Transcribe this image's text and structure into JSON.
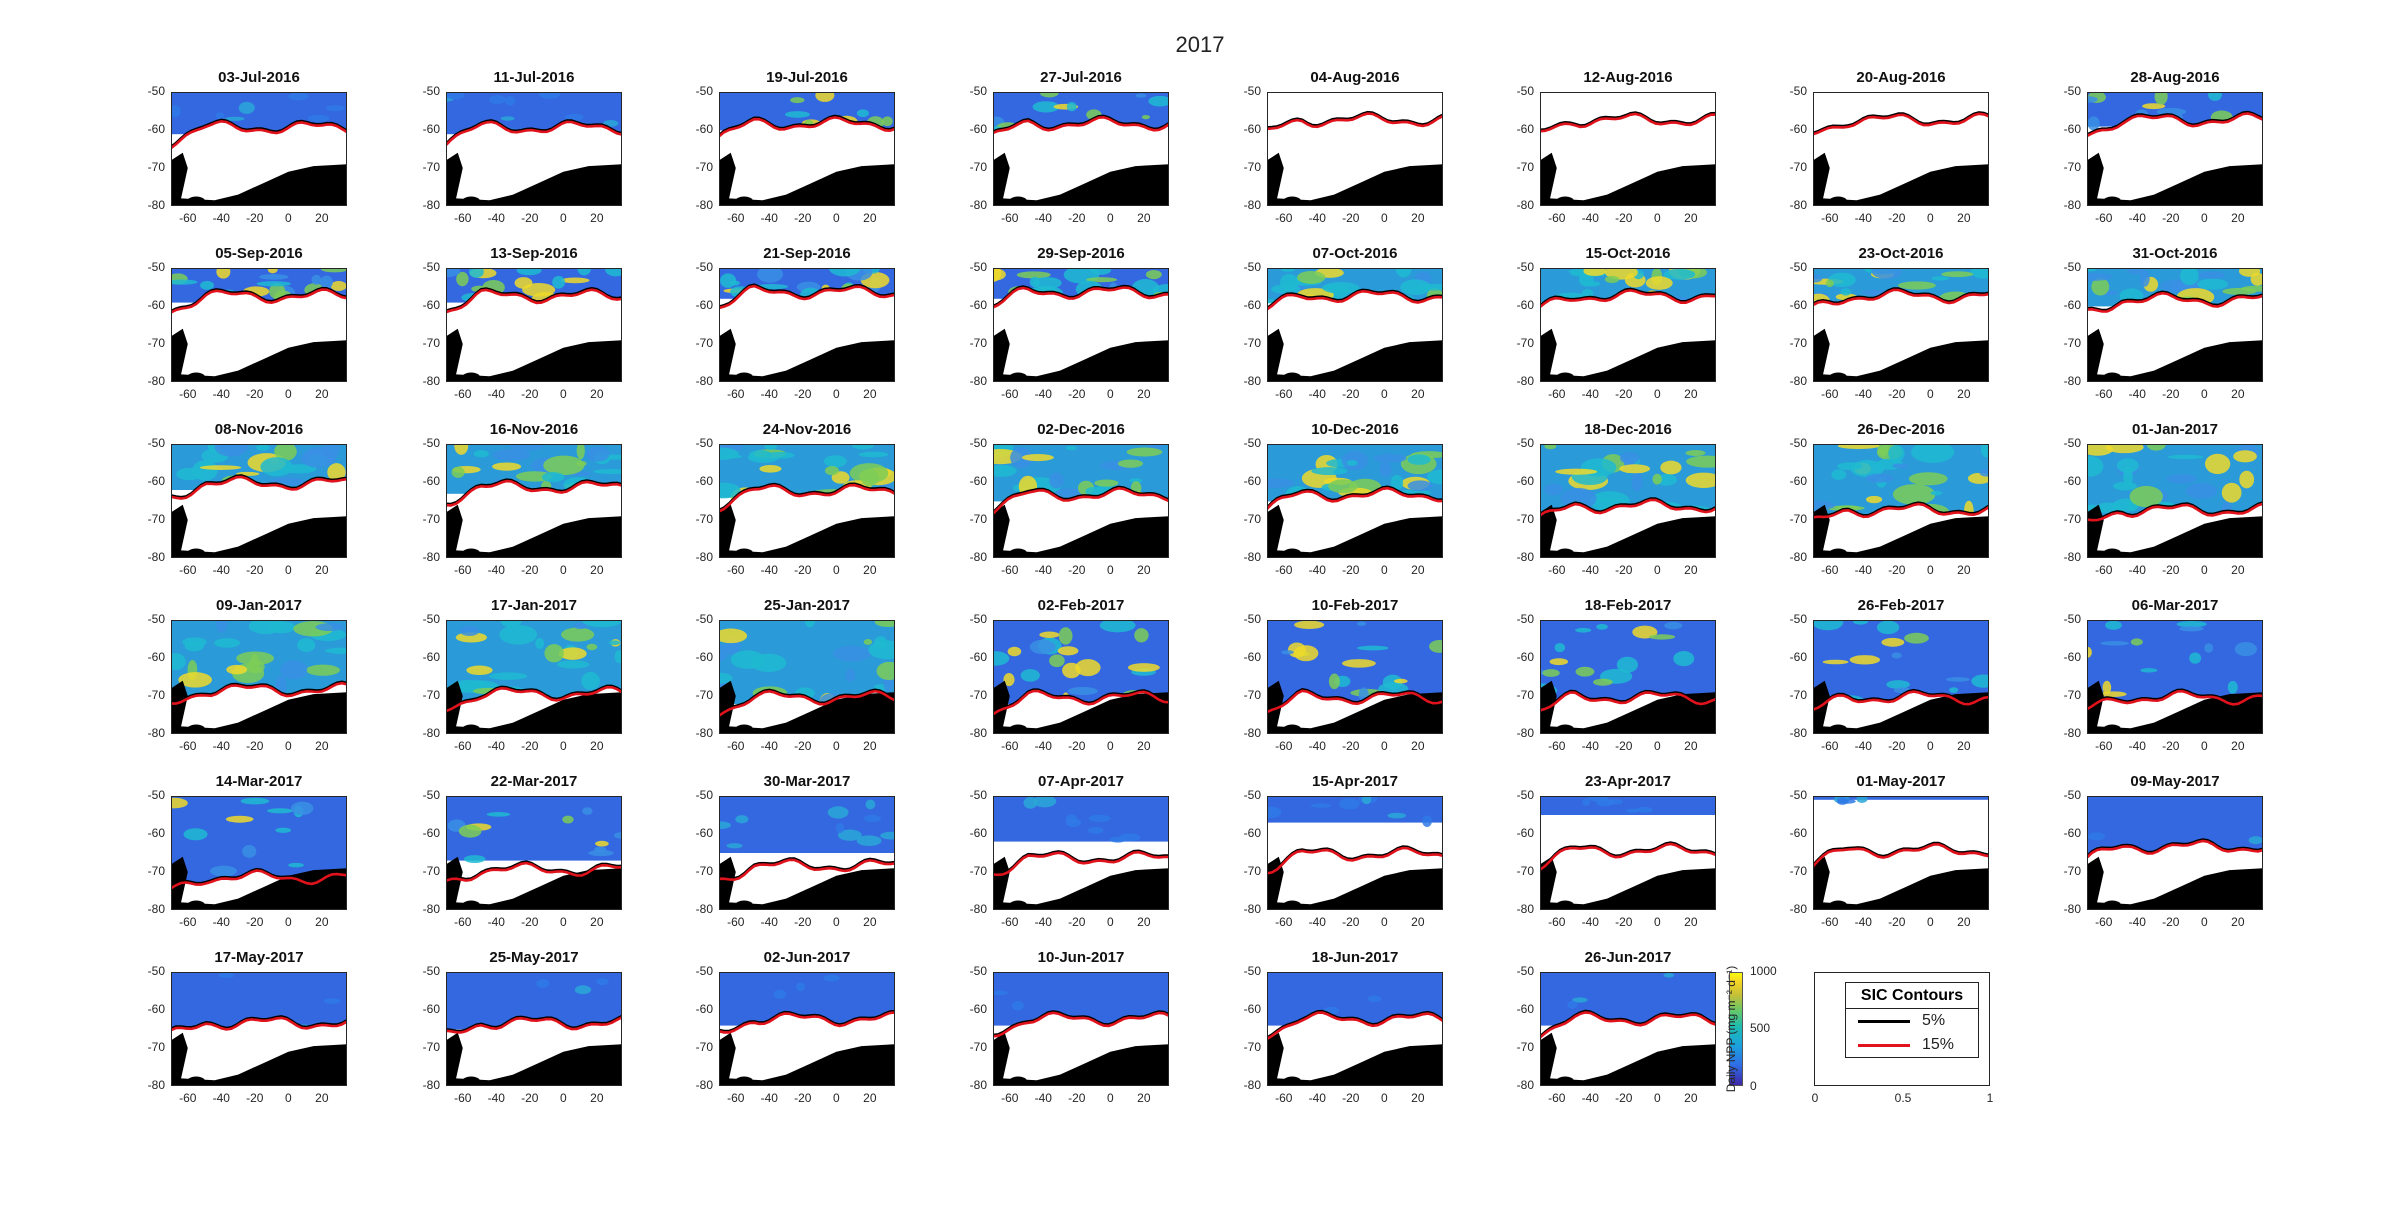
{
  "suptitle": "2017",
  "chart_data": {
    "type": "heatmap",
    "title": "2017",
    "panel_titles": [
      "03-Jul-2016",
      "11-Jul-2016",
      "19-Jul-2016",
      "27-Jul-2016",
      "04-Aug-2016",
      "12-Aug-2016",
      "20-Aug-2016",
      "28-Aug-2016",
      "05-Sep-2016",
      "13-Sep-2016",
      "21-Sep-2016",
      "29-Sep-2016",
      "07-Oct-2016",
      "15-Oct-2016",
      "23-Oct-2016",
      "31-Oct-2016",
      "08-Nov-2016",
      "16-Nov-2016",
      "24-Nov-2016",
      "02-Dec-2016",
      "10-Dec-2016",
      "18-Dec-2016",
      "26-Dec-2016",
      "01-Jan-2017",
      "09-Jan-2017",
      "17-Jan-2017",
      "25-Jan-2017",
      "02-Feb-2017",
      "10-Feb-2017",
      "18-Feb-2017",
      "26-Feb-2017",
      "06-Mar-2017",
      "14-Mar-2017",
      "22-Mar-2017",
      "30-Mar-2017",
      "07-Apr-2017",
      "15-Apr-2017",
      "23-Apr-2017",
      "01-May-2017",
      "09-May-2017",
      "17-May-2017",
      "25-May-2017",
      "02-Jun-2017",
      "10-Jun-2017",
      "18-Jun-2017",
      "26-Jun-2017"
    ],
    "ice_edge_lat": [
      -59,
      -59,
      -58,
      -58,
      -57,
      -57,
      -57,
      -57,
      -57,
      -57,
      -56,
      -56,
      -57,
      -57,
      -57,
      -58,
      -60,
      -61,
      -62,
      -63,
      -63,
      -66,
      -67,
      -67,
      -68,
      -69,
      -70,
      -70,
      -70,
      -70,
      -70,
      -70,
      -71,
      -69,
      -68,
      -66,
      -65,
      -64,
      -64,
      -63,
      -63,
      -63,
      -62,
      -62,
      -62,
      -62
    ],
    "npp_intensity": [
      0.2,
      0.25,
      0.3,
      0.35,
      0.35,
      0.4,
      0.45,
      0.5,
      0.55,
      0.5,
      0.55,
      0.6,
      0.65,
      0.65,
      0.7,
      0.7,
      0.8,
      0.8,
      0.8,
      0.85,
      0.85,
      0.9,
      0.9,
      0.85,
      0.8,
      0.8,
      0.7,
      0.6,
      0.55,
      0.5,
      0.45,
      0.4,
      0.35,
      0.3,
      0.25,
      0.2,
      0.15,
      0.1,
      0.05,
      0,
      0,
      0,
      0,
      0,
      0,
      0
    ],
    "npp_data_north_of": [
      -50,
      -50,
      -50,
      -50,
      -55,
      -55,
      -55,
      -50,
      -50,
      -50,
      -50,
      -50,
      -50,
      -50,
      -50,
      -50,
      -50,
      -50,
      -50,
      -50,
      -50,
      -50,
      -50,
      -50,
      -50,
      -50,
      -50,
      -50,
      -50,
      -50,
      -50,
      -50,
      -50,
      -67,
      -65,
      -62,
      -57,
      -55,
      -51,
      -50,
      -50,
      -50,
      -50,
      -50,
      -50,
      -50
    ],
    "xlim": [
      -70,
      35
    ],
    "ylim": [
      -80,
      -50
    ],
    "xticks": [
      -60,
      -40,
      -20,
      0,
      20
    ],
    "yticks": [
      -50,
      -60,
      -70,
      -80
    ],
    "x_tick_labels": [
      "-60",
      "-40",
      "-20",
      "0",
      "20"
    ],
    "y_tick_labels": [
      "-50",
      "-60",
      "-70",
      "-80"
    ],
    "colorbar": {
      "label": "Daily NPP (mg m⁻² d⁻¹)",
      "range": [
        0,
        1000
      ],
      "ticks": [
        "1000",
        "500",
        "0"
      ]
    },
    "legend": {
      "title": "SIC Contours",
      "entries": [
        {
          "label": "5%",
          "color": "#000000"
        },
        {
          "label": "15%",
          "color": "#e0121b"
        }
      ],
      "x_tick_labels": [
        "0",
        "0.5",
        "1"
      ]
    }
  }
}
